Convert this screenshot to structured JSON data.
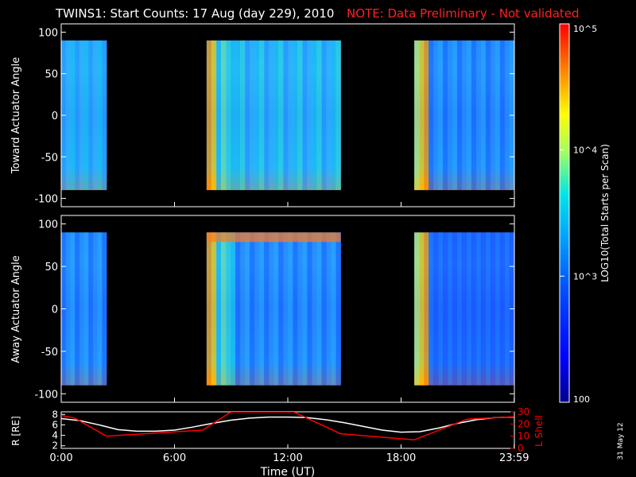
{
  "title": "TWINS1: Start Counts: 17 Aug (day 229), 2010",
  "note": "NOTE: Data Preliminary - Not validated",
  "footer_date": "31 May 12",
  "colorbar": {
    "label": "LOG10(Total Starts per Scan)",
    "tick_labels": [
      "10^5",
      "10^4",
      "10^3",
      "100"
    ],
    "tick_values": [
      100000,
      10000,
      1000,
      100
    ]
  },
  "chart_data": [
    {
      "type": "heatmap",
      "ylabel": "Toward Actuator Angle",
      "ylim": [
        -110,
        110
      ],
      "yticks": [
        100,
        50,
        0,
        -50,
        -100
      ],
      "angle_range": [
        -90,
        90
      ],
      "data_time_ranges_h": [
        [
          0.0,
          2.4
        ],
        [
          7.7,
          14.8
        ],
        [
          18.7,
          23.99
        ]
      ]
    },
    {
      "type": "heatmap",
      "ylabel": "Away Actuator Angle",
      "ylim": [
        -110,
        110
      ],
      "yticks": [
        100,
        50,
        0,
        -50,
        -100
      ],
      "angle_range": [
        -90,
        90
      ],
      "data_time_ranges_h": [
        [
          0.0,
          2.4
        ],
        [
          7.7,
          14.8
        ],
        [
          18.7,
          23.99
        ]
      ]
    },
    {
      "type": "line",
      "xlabel": "Time (UT)",
      "xticks": [
        "0:00",
        "6:00",
        "12:00",
        "18:00",
        "23:59"
      ],
      "xtick_hours": [
        0,
        6,
        12,
        18,
        23.99
      ],
      "ylabel_left": "R [RE]",
      "yticks_left": [
        2,
        4,
        6,
        8
      ],
      "ylim_left": [
        1.5,
        8.5
      ],
      "ylabel_right": "L Shell",
      "yticks_right": [
        0,
        10,
        20,
        30
      ],
      "ylim_right": [
        0,
        30
      ],
      "series": [
        {
          "name": "R [RE]",
          "axis": "left",
          "color": "#ffffff",
          "x": [
            0,
            1,
            2,
            3,
            4,
            5,
            6,
            7,
            8,
            9,
            10,
            11,
            12,
            13,
            14,
            15,
            16,
            17,
            18,
            19,
            20,
            21,
            22,
            23,
            24
          ],
          "y": [
            7.2,
            6.8,
            6.0,
            5.1,
            4.8,
            4.8,
            5.0,
            5.6,
            6.3,
            6.9,
            7.3,
            7.5,
            7.5,
            7.4,
            7.0,
            6.4,
            5.7,
            5.0,
            4.6,
            4.7,
            5.4,
            6.3,
            7.0,
            7.4,
            7.5
          ]
        },
        {
          "name": "L Shell",
          "axis": "right",
          "color": "#ff0000",
          "x": [
            0,
            0.7,
            2.4,
            7.5,
            9.0,
            12.3,
            14.8,
            18.7,
            21.5,
            23.99
          ],
          "y": [
            27,
            25,
            10,
            15,
            30,
            30,
            12,
            7,
            24,
            26
          ]
        }
      ]
    }
  ]
}
